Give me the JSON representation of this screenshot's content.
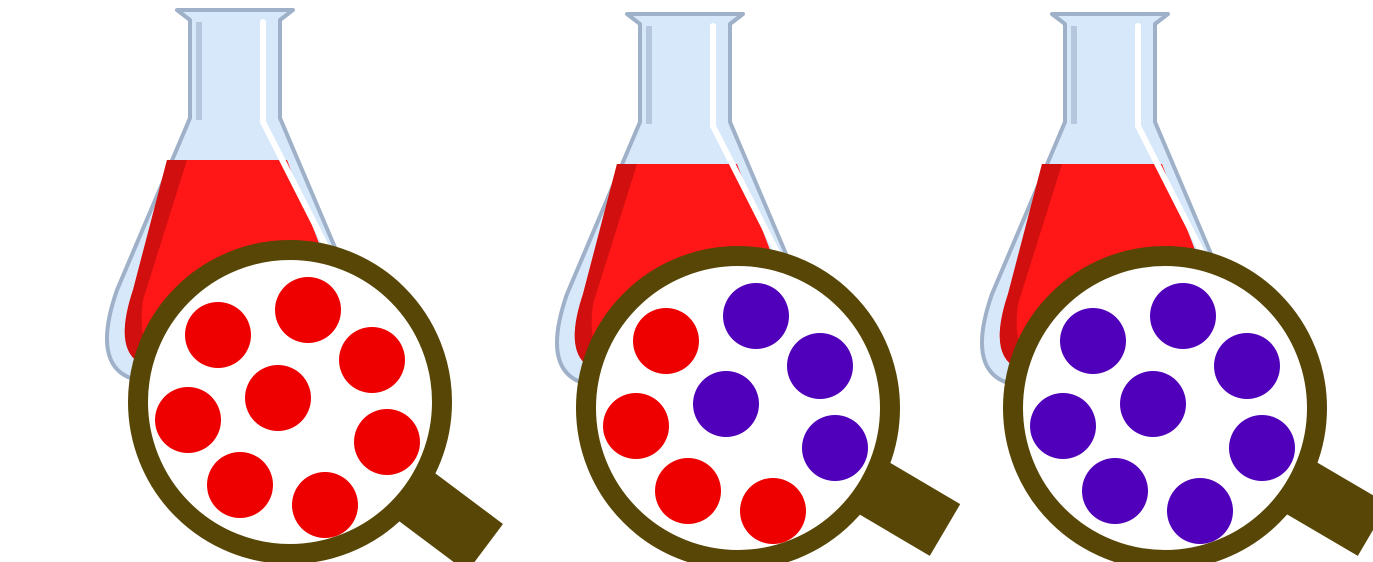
{
  "colors": {
    "liquid": "#ff1616",
    "liquid_shade": "#d10f0f",
    "glass": "#d6e8fa",
    "glass_edge": "#9fb1c9",
    "glass_highlight": "#ffffff",
    "magnifier_frame": "#574605",
    "lens_background": "#ffffff",
    "particle_red": "#ee0000",
    "particle_purple": "#5000bb"
  },
  "panels": [
    {
      "particles": [
        "red",
        "red",
        "red",
        "red",
        "red",
        "red",
        "red",
        "red"
      ]
    },
    {
      "particles": [
        "red",
        "purple",
        "purple",
        "purple",
        "red",
        "purple",
        "red",
        "red"
      ]
    },
    {
      "particles": [
        "purple",
        "purple",
        "purple",
        "purple",
        "purple",
        "purple",
        "purple",
        "purple"
      ]
    }
  ]
}
